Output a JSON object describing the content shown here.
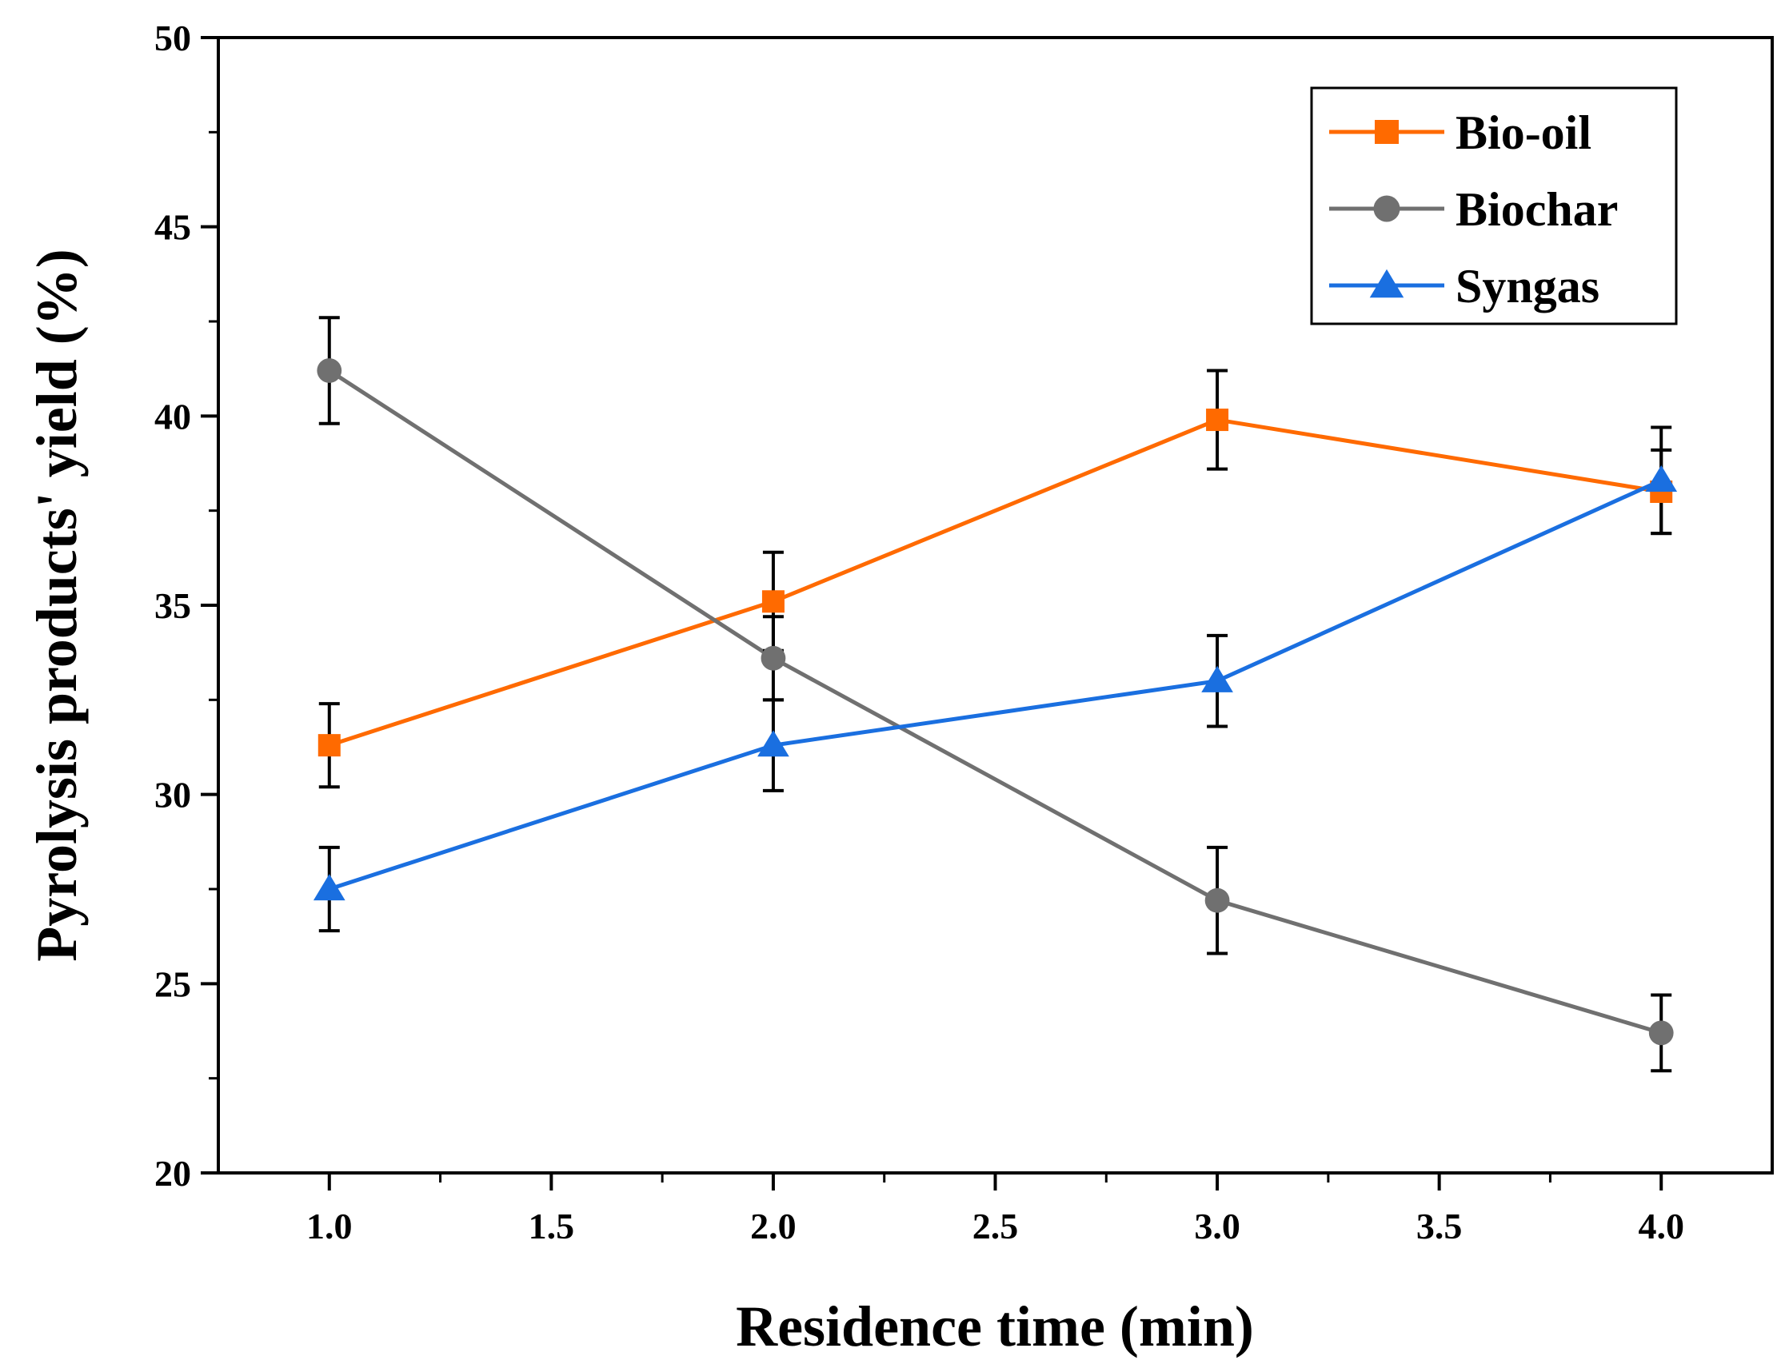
{
  "chart_data": {
    "type": "line",
    "xlabel": "Residence time (min)",
    "ylabel": "Pyrolysis products' yield (%)",
    "xlim": [
      0.75,
      4.25
    ],
    "ylim": [
      20,
      50
    ],
    "xticks": [
      "1.0",
      "1.5",
      "2.0",
      "2.5",
      "3.0",
      "3.5",
      "4.0"
    ],
    "yticks": [
      "20",
      "25",
      "30",
      "35",
      "40",
      "45",
      "50"
    ],
    "legend_position": "top-right",
    "grid": false,
    "x": [
      1.0,
      2.0,
      3.0,
      4.0
    ],
    "series": [
      {
        "name": "Bio-oil",
        "color": "#ff6a00",
        "marker": "square",
        "values": [
          31.3,
          35.1,
          39.9,
          38.0
        ],
        "errors": [
          1.1,
          1.3,
          1.3,
          1.1
        ]
      },
      {
        "name": "Biochar",
        "color": "#707070",
        "marker": "circle",
        "values": [
          41.2,
          33.6,
          27.2,
          23.7
        ],
        "errors": [
          1.4,
          1.1,
          1.4,
          1.0
        ]
      },
      {
        "name": "Syngas",
        "color": "#1a6fe0",
        "marker": "triangle",
        "values": [
          27.5,
          31.3,
          33.0,
          38.3
        ],
        "errors": [
          1.1,
          1.2,
          1.2,
          1.4
        ]
      }
    ]
  }
}
